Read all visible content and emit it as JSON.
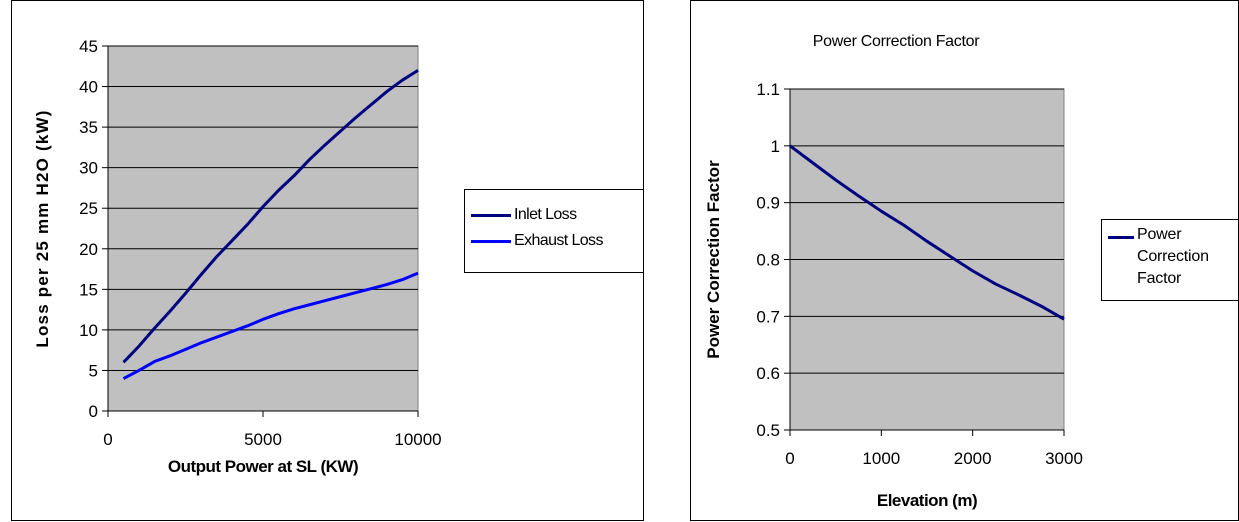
{
  "chart_data": [
    {
      "type": "line",
      "title": "",
      "xlabel": "Output Power at SL (KW)",
      "ylabel": "Loss per 25 mm H2O (kW)",
      "xlim": [
        0,
        10000
      ],
      "ylim": [
        0,
        45
      ],
      "xticks": [
        0,
        5000,
        10000
      ],
      "yticks": [
        0,
        5,
        10,
        15,
        20,
        25,
        30,
        35,
        40,
        45
      ],
      "grid": "horizontal",
      "plot_background": "#c0c0c0",
      "legend_position": "right",
      "series": [
        {
          "name": "Inlet Loss",
          "color": "#000080",
          "x": [
            500,
            1000,
            1500,
            2000,
            2500,
            3000,
            3500,
            4000,
            4500,
            5000,
            5500,
            6000,
            6500,
            7000,
            7500,
            8000,
            8500,
            9000,
            9500,
            10000
          ],
          "y": [
            6,
            8,
            10.2,
            12.3,
            14.5,
            16.8,
            19,
            21,
            23,
            25.2,
            27.2,
            29,
            31,
            32.8,
            34.5,
            36.2,
            37.8,
            39.4,
            40.8,
            42
          ]
        },
        {
          "name": "Exhaust Loss",
          "color": "#0000ff",
          "x": [
            500,
            1000,
            1500,
            2000,
            2500,
            3000,
            3500,
            4000,
            4500,
            5000,
            5500,
            6000,
            6500,
            7000,
            7500,
            8000,
            8500,
            9000,
            9500,
            10000
          ],
          "y": [
            4,
            5,
            6.1,
            6.8,
            7.6,
            8.4,
            9.1,
            9.8,
            10.5,
            11.3,
            12,
            12.6,
            13.1,
            13.6,
            14.1,
            14.6,
            15.1,
            15.6,
            16.2,
            17
          ]
        }
      ]
    },
    {
      "type": "line",
      "title": "Power Correction Factor",
      "xlabel": "Elevation (m)",
      "ylabel": "Power Correction Factor",
      "xlim": [
        0,
        3000
      ],
      "ylim": [
        0.5,
        1.1
      ],
      "xticks": [
        0,
        1000,
        2000,
        3000
      ],
      "yticks": [
        0.5,
        0.6,
        0.7,
        0.8,
        0.9,
        1,
        1.1
      ],
      "grid": "horizontal",
      "plot_background": "#c0c0c0",
      "legend_position": "right",
      "series": [
        {
          "name": "Power Correction Factor",
          "legend_lines": [
            "Power",
            "Correction",
            "Factor"
          ],
          "color": "#000080",
          "x": [
            0,
            250,
            500,
            750,
            1000,
            1250,
            1500,
            1750,
            2000,
            2250,
            2500,
            2750,
            3000
          ],
          "y": [
            1.0,
            0.97,
            0.94,
            0.912,
            0.885,
            0.86,
            0.832,
            0.806,
            0.78,
            0.757,
            0.738,
            0.718,
            0.695
          ]
        }
      ]
    }
  ]
}
